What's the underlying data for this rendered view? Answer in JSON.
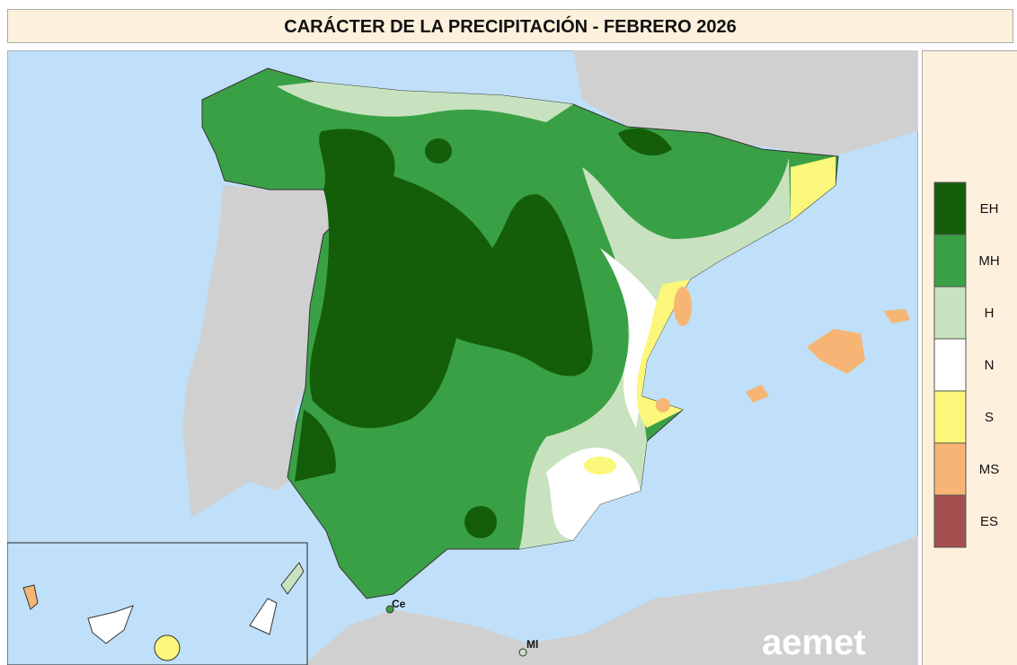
{
  "title": "CARÁCTER DE LA PRECIPITACIÓN - FEBRERO 2026",
  "legend": [
    {
      "label": "EH",
      "color": "#145e0a"
    },
    {
      "label": "MH",
      "color": "#3aa045"
    },
    {
      "label": "H",
      "color": "#c8e2c0"
    },
    {
      "label": "N",
      "color": "#ffffff"
    },
    {
      "label": "S",
      "color": "#fbf77a"
    },
    {
      "label": "MS",
      "color": "#f6b574"
    },
    {
      "label": "ES",
      "color": "#a55050"
    }
  ],
  "places": [
    "Ce",
    "Ml"
  ],
  "logo": "aemet"
}
